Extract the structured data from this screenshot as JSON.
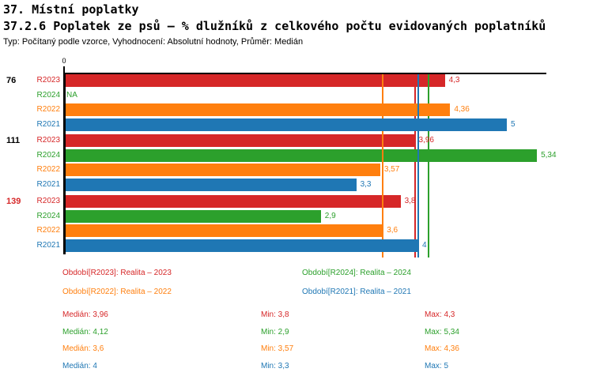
{
  "header": {
    "title": "37. Místní poplatky",
    "subtitle": "37.2.6 Poplatek ze psů – % dlužníků z celkového počtu evidovaných poplatníků",
    "meta": "Typ: Počítaný podle vzorce, Vyhodnocení: Absolutní hodnoty, Průměr: Medián"
  },
  "colors": {
    "axis": "#000000",
    "background": "#ffffff",
    "series": {
      "R2023": "#d62728",
      "R2024": "#2ca02c",
      "R2022": "#ff7f0e",
      "R2021": "#1f77b4"
    }
  },
  "chart_data": {
    "type": "bar",
    "orientation": "horizontal",
    "axis": {
      "origin_label": "0",
      "xlim": [
        0,
        5.45
      ],
      "grid": false
    },
    "series_order": [
      "R2023",
      "R2024",
      "R2022",
      "R2021"
    ],
    "groups": [
      {
        "label": "76",
        "label_color": "#000000",
        "bars": [
          {
            "series": "R2023",
            "value": 4.3,
            "display": "4,3"
          },
          {
            "series": "R2024",
            "value": null,
            "display": "NA"
          },
          {
            "series": "R2022",
            "value": 4.36,
            "display": "4,36"
          },
          {
            "series": "R2021",
            "value": 5,
            "display": "5"
          }
        ]
      },
      {
        "label": "111",
        "label_color": "#000000",
        "bars": [
          {
            "series": "R2023",
            "value": 3.96,
            "display": "3,96"
          },
          {
            "series": "R2024",
            "value": 5.34,
            "display": "5,34"
          },
          {
            "series": "R2022",
            "value": 3.57,
            "display": "3,57"
          },
          {
            "series": "R2021",
            "value": 3.3,
            "display": "3,3"
          }
        ]
      },
      {
        "label": "139",
        "label_color": "#d62728",
        "bars": [
          {
            "series": "R2023",
            "value": 3.8,
            "display": "3,8"
          },
          {
            "series": "R2024",
            "value": 2.9,
            "display": "2,9"
          },
          {
            "series": "R2022",
            "value": 3.6,
            "display": "3,6"
          },
          {
            "series": "R2021",
            "value": 4,
            "display": "4"
          }
        ]
      }
    ],
    "medians": {
      "R2023": 3.96,
      "R2024": 4.12,
      "R2022": 3.6,
      "R2021": 4
    },
    "legend": [
      {
        "series": "R2023",
        "text": "Období[R2023]: Realita – 2023"
      },
      {
        "series": "R2024",
        "text": "Období[R2024]: Realita – 2024"
      },
      {
        "series": "R2022",
        "text": "Období[R2022]: Realita – 2022"
      },
      {
        "series": "R2021",
        "text": "Období[R2021]: Realita – 2021"
      }
    ],
    "stats": [
      {
        "series": "R2023",
        "median": "Medián: 3,96",
        "min": "Min: 3,8",
        "max": "Max: 4,3"
      },
      {
        "series": "R2024",
        "median": "Medián: 4,12",
        "min": "Min: 2,9",
        "max": "Max: 5,34"
      },
      {
        "series": "R2022",
        "median": "Medián: 3,6",
        "min": "Min: 3,57",
        "max": "Max: 4,36"
      },
      {
        "series": "R2021",
        "median": "Medián: 4",
        "min": "Min: 3,3",
        "max": "Max: 5"
      }
    ]
  }
}
